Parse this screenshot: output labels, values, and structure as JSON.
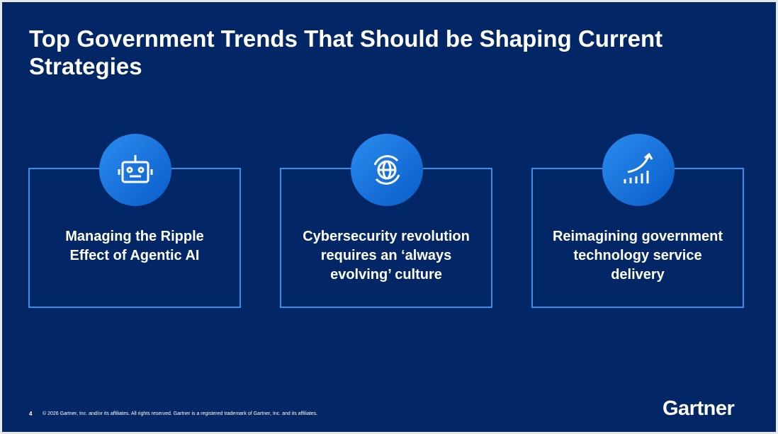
{
  "slide": {
    "title": "Top Government Trends That Should be Shaping Current Strategies",
    "cards": [
      {
        "text": "Managing the Ripple Effect of Agentic AI"
      },
      {
        "text": "Cybersecurity revolution requires an ‘always evolving’ culture"
      },
      {
        "text": "Reimagining government technology service delivery"
      }
    ],
    "footer": {
      "page": "4",
      "copyright": "© 2026 Gartner, Inc. and/or its affiliates. All rights reserved. Gartner is a registered trademark of Gartner, Inc. and its affiliates.",
      "logo": "Gartner"
    }
  }
}
